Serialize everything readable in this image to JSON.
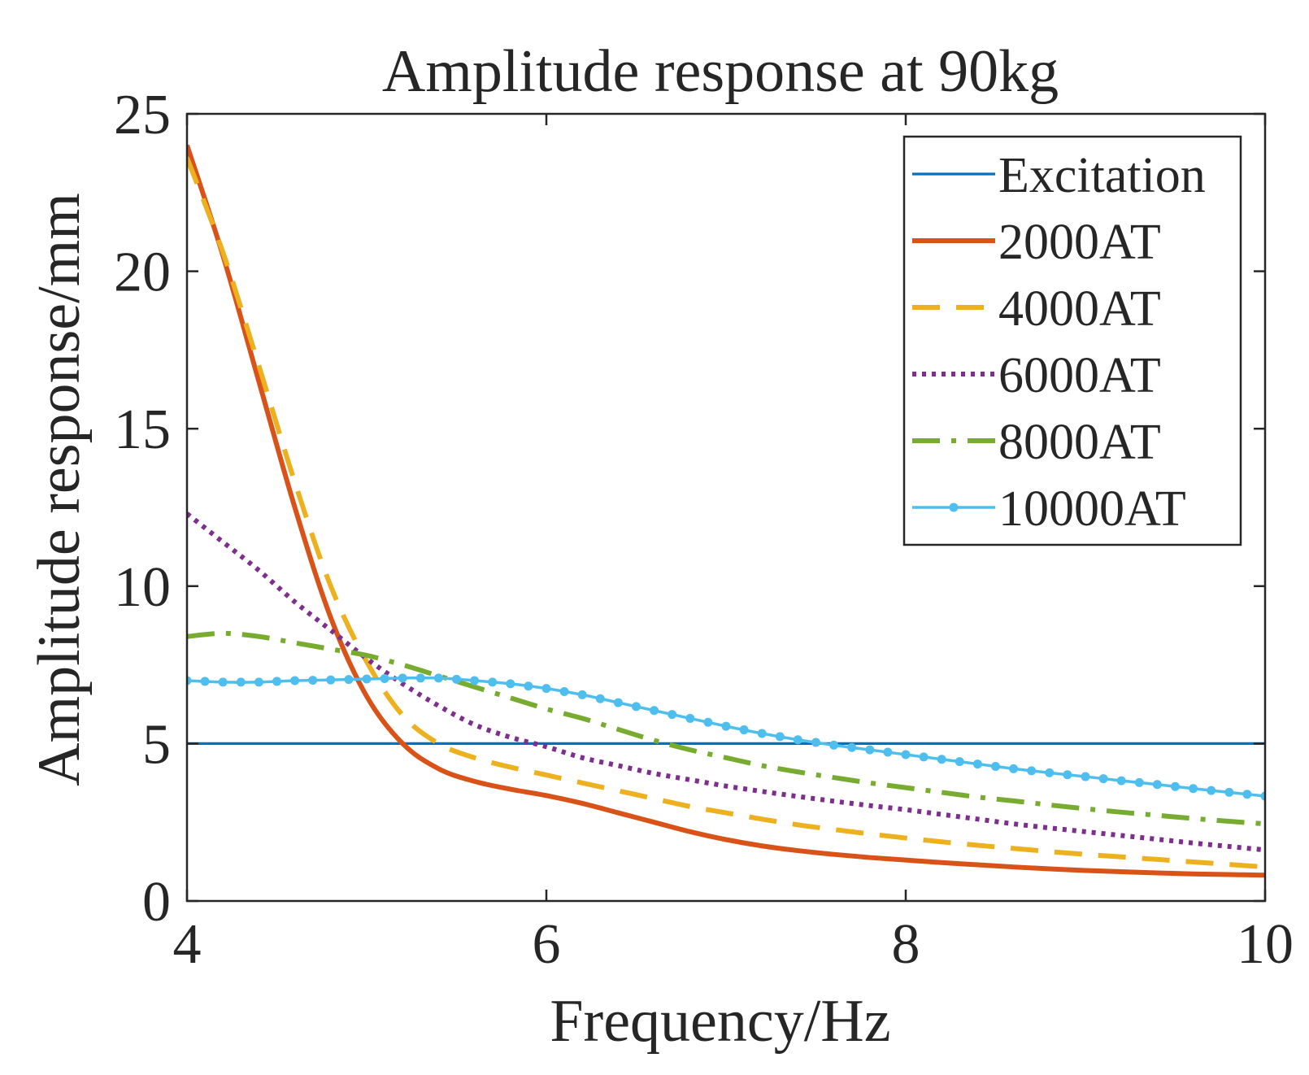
{
  "chart_data": {
    "type": "line",
    "title": "Amplitude response at 90kg",
    "xlabel": "Frequency/Hz",
    "ylabel": "Amplitude response/mm",
    "xlim": [
      4,
      10
    ],
    "ylim": [
      0,
      25
    ],
    "xticks": [
      "4",
      "6",
      "8",
      "10"
    ],
    "yticks": [
      "0",
      "5",
      "10",
      "15",
      "20",
      "25"
    ],
    "grid": false,
    "legend_position": "top-right",
    "series": [
      {
        "name": "Excitation",
        "color": "#0072BD",
        "style": "solid",
        "x": [
          4,
          10
        ],
        "y": [
          5,
          5
        ]
      },
      {
        "name": "2000AT",
        "color": "#D95319",
        "style": "solid-thick",
        "x": [
          4.0,
          4.2,
          4.4,
          4.6,
          4.8,
          5.0,
          5.2,
          5.4,
          5.6,
          5.8,
          6.0,
          6.2,
          6.4,
          6.6,
          6.8,
          7.0,
          7.2,
          7.4,
          7.6,
          7.8,
          8.0,
          8.2,
          8.4,
          8.6,
          8.8,
          9.0,
          9.2,
          9.4,
          9.6,
          9.8,
          10.0
        ],
        "y": [
          24.0,
          20.5,
          16.5,
          12.5,
          9.0,
          6.5,
          5.0,
          4.2,
          3.8,
          3.55,
          3.35,
          3.1,
          2.8,
          2.5,
          2.2,
          1.95,
          1.75,
          1.6,
          1.48,
          1.38,
          1.3,
          1.22,
          1.15,
          1.08,
          1.02,
          0.97,
          0.93,
          0.89,
          0.86,
          0.84,
          0.82
        ]
      },
      {
        "name": "4000AT",
        "color": "#EDB120",
        "style": "dashed",
        "x": [
          4.0,
          4.2,
          4.4,
          4.6,
          4.8,
          5.0,
          5.2,
          5.4,
          5.6,
          5.8,
          6.0,
          6.2,
          6.4,
          6.6,
          6.8,
          7.0,
          7.2,
          7.4,
          7.6,
          7.8,
          8.0,
          8.2,
          8.4,
          8.6,
          8.8,
          9.0,
          9.2,
          9.4,
          9.6,
          9.8,
          10.0
        ],
        "y": [
          23.6,
          20.6,
          17.0,
          13.3,
          10.0,
          7.6,
          5.9,
          5.0,
          4.55,
          4.25,
          4.0,
          3.75,
          3.5,
          3.25,
          3.0,
          2.8,
          2.6,
          2.42,
          2.27,
          2.13,
          2.0,
          1.88,
          1.77,
          1.67,
          1.57,
          1.48,
          1.4,
          1.32,
          1.24,
          1.16,
          1.08
        ]
      },
      {
        "name": "6000AT",
        "color": "#7E2F8E",
        "style": "dotted",
        "x": [
          4.0,
          4.2,
          4.4,
          4.6,
          4.8,
          5.0,
          5.2,
          5.4,
          5.6,
          5.8,
          6.0,
          6.2,
          6.4,
          6.6,
          6.8,
          7.0,
          7.2,
          7.4,
          7.6,
          7.8,
          8.0,
          8.2,
          8.4,
          8.6,
          8.8,
          9.0,
          9.2,
          9.4,
          9.6,
          9.8,
          10.0
        ],
        "y": [
          12.3,
          11.4,
          10.5,
          9.5,
          8.6,
          7.7,
          6.9,
          6.2,
          5.6,
          5.2,
          4.9,
          4.55,
          4.3,
          4.05,
          3.85,
          3.65,
          3.48,
          3.32,
          3.17,
          3.03,
          2.9,
          2.75,
          2.6,
          2.45,
          2.32,
          2.2,
          2.08,
          1.96,
          1.84,
          1.73,
          1.62
        ]
      },
      {
        "name": "8000AT",
        "color": "#77AC30",
        "style": "dashdot",
        "x": [
          4.0,
          4.2,
          4.4,
          4.6,
          4.8,
          5.0,
          5.2,
          5.4,
          5.6,
          5.8,
          6.0,
          6.2,
          6.4,
          6.6,
          6.8,
          7.0,
          7.2,
          7.4,
          7.6,
          7.8,
          8.0,
          8.2,
          8.4,
          8.6,
          8.8,
          9.0,
          9.2,
          9.4,
          9.6,
          9.8,
          10.0
        ],
        "y": [
          8.4,
          8.5,
          8.4,
          8.2,
          8.0,
          7.8,
          7.5,
          7.15,
          6.8,
          6.45,
          6.1,
          5.8,
          5.45,
          5.1,
          4.8,
          4.55,
          4.3,
          4.1,
          3.92,
          3.75,
          3.6,
          3.45,
          3.3,
          3.18,
          3.05,
          2.93,
          2.82,
          2.72,
          2.62,
          2.53,
          2.45
        ]
      },
      {
        "name": "10000AT",
        "color": "#4DBEEE",
        "style": "solid-dot-markers",
        "x": [
          4.0,
          4.2,
          4.4,
          4.6,
          4.8,
          5.0,
          5.2,
          5.4,
          5.6,
          5.8,
          6.0,
          6.2,
          6.4,
          6.6,
          6.8,
          7.0,
          7.2,
          7.4,
          7.6,
          7.8,
          8.0,
          8.2,
          8.4,
          8.6,
          8.8,
          9.0,
          9.2,
          9.4,
          9.6,
          9.8,
          10.0
        ],
        "y": [
          7.0,
          6.95,
          6.95,
          7.0,
          7.02,
          7.05,
          7.08,
          7.08,
          7.0,
          6.9,
          6.75,
          6.55,
          6.3,
          6.05,
          5.8,
          5.55,
          5.32,
          5.12,
          4.95,
          4.8,
          4.65,
          4.5,
          4.35,
          4.2,
          4.07,
          3.95,
          3.82,
          3.7,
          3.57,
          3.45,
          3.33
        ]
      }
    ]
  }
}
